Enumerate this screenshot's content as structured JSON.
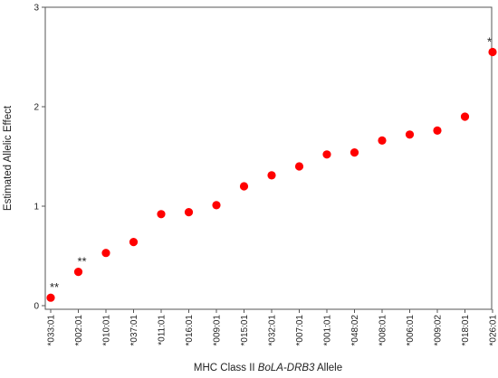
{
  "chart_data": {
    "type": "scatter",
    "title": "",
    "xlabel_prefix": "MHC Class II ",
    "xlabel_italic": "BoLA-DRB3",
    "xlabel_suffix": "  Allele",
    "ylabel": "Estimated Allelic Effect",
    "ylim": [
      0,
      3
    ],
    "yticks": [
      0,
      1,
      2,
      3
    ],
    "grid": false,
    "marker_color": "#ff0000",
    "categories": [
      "*033:01",
      "*002:01",
      "*010:01",
      "*037:01",
      "*011:01",
      "*016:01",
      "*009:01",
      "*015:01",
      "*032:01",
      "*007:01",
      "*001:01",
      "*048:02",
      "*008:01",
      "*006:01",
      "*009:02",
      "*018:01",
      "*026:01"
    ],
    "values": [
      0.08,
      0.34,
      0.53,
      0.64,
      0.92,
      0.94,
      1.01,
      1.2,
      1.31,
      1.4,
      1.52,
      1.54,
      1.66,
      1.72,
      1.76,
      1.9,
      2.55
    ],
    "annotations": [
      {
        "index": 0,
        "text": "**"
      },
      {
        "index": 1,
        "text": "**"
      },
      {
        "index": 16,
        "text": "*"
      }
    ]
  }
}
